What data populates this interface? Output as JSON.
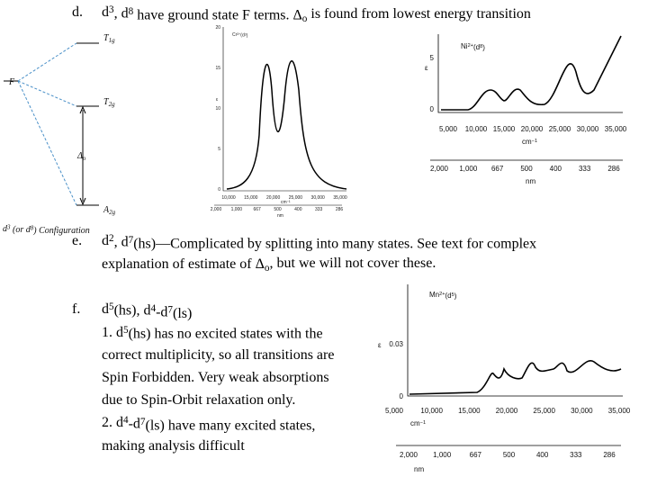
{
  "items": [
    {
      "label": "d.",
      "lines": [
        [
          "d",
          {
            "sup": "3"
          },
          ", d",
          {
            "sup": "8"
          },
          " have ground state F terms.  Δ",
          {
            "sub": "o"
          },
          " is found from lowest energy transition"
        ]
      ]
    },
    {
      "label": "e.",
      "lines": [
        [
          "d",
          {
            "sup": "2"
          },
          ", d",
          {
            "sup": "7"
          },
          "(hs)—Complicated by splitting into many states.  See text for complex"
        ],
        [
          "explanation of estimate of Δ",
          {
            "sub": "o"
          },
          ", but we will not cover these."
        ]
      ]
    },
    {
      "label": "f.",
      "lines": [
        [
          "d",
          {
            "sup": "5"
          },
          "(hs), d",
          {
            "sup": "4"
          },
          "-d",
          {
            "sup": "7"
          },
          "(ls)"
        ],
        [
          "1.    d",
          {
            "sup": "5"
          },
          "(hs) has no excited states with the"
        ],
        [
          "correct multiplicity, so all transitions are"
        ],
        [
          "Spin Forbidden.  Very weak absorptions"
        ],
        [
          "due to Spin-Orbit relaxation only."
        ],
        [
          "2.    d",
          {
            "sup": "4"
          },
          "-d",
          {
            "sup": "7"
          },
          "(ls) have many excited states,"
        ],
        [
          "making analysis difficult"
        ]
      ]
    }
  ],
  "diagram": {
    "ground": "F",
    "levels": [
      [
        "T",
        {
          "sub": "1g"
        }
      ],
      [
        "T",
        {
          "sub": "2g"
        }
      ],
      [
        "A",
        {
          "sub": "2g"
        }
      ]
    ],
    "gap": [
      "Δ",
      {
        "sub": "o"
      }
    ],
    "caption": [
      "d",
      {
        "sup": "3"
      },
      " (or d",
      {
        "sup": "8"
      },
      ") Configuration"
    ]
  },
  "spectra": [
    {
      "title": [
        "Cr",
        {
          "sup": "3+"
        },
        "(d",
        {
          "sup": "3"
        },
        ")"
      ],
      "ylabel": "ε",
      "yticks": [
        "20",
        "15",
        "10",
        "5",
        "0"
      ],
      "xticks": [
        "10,000",
        "15,000",
        "20,000",
        "25,000",
        "30,000",
        "35,000"
      ],
      "xunit": [
        "cm",
        {
          "sup": "−1"
        }
      ],
      "nmticks": [
        "2,000",
        "1,000",
        "667",
        "500",
        "400",
        "333",
        "286"
      ],
      "nmunit": "nm"
    },
    {
      "title": [
        "Ni",
        {
          "sup": "2+"
        },
        "(d",
        {
          "sup": "8"
        },
        ")"
      ],
      "ylabel": "ε",
      "yticks": [
        "5",
        "0"
      ],
      "xticks": [
        "5,000",
        "10,000",
        "15,000",
        "20,000",
        "25,000",
        "30,000",
        "35,000"
      ],
      "xunit": [
        "cm",
        {
          "sup": "−1"
        }
      ],
      "nmticks": [
        "2,000",
        "1,000",
        "667",
        "500",
        "400",
        "333",
        "286"
      ],
      "nmunit": "nm"
    },
    {
      "title": [
        "Mn",
        {
          "sup": "2+"
        },
        "(d",
        {
          "sup": "5"
        },
        ")"
      ],
      "ylabel": "ε",
      "yticks": [
        "0.03",
        "0"
      ],
      "xticks": [
        "5,000",
        "10,000",
        "15,000",
        "20,000",
        "25,000",
        "30,000",
        "35,000"
      ],
      "xunit": [
        "cm",
        {
          "sup": "−1"
        }
      ],
      "nmticks": [
        "2,000",
        "1,000",
        "667",
        "500",
        "400",
        "333",
        "286"
      ],
      "nmunit": "nm"
    }
  ]
}
